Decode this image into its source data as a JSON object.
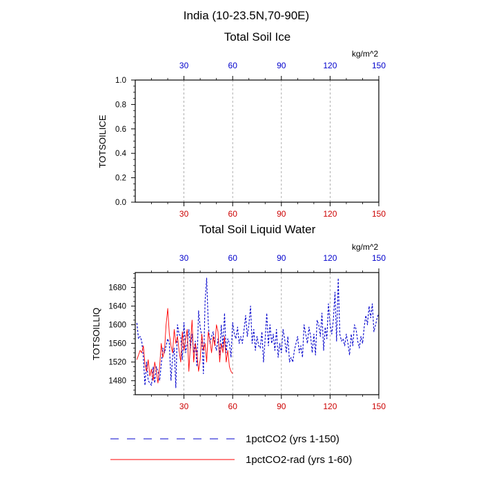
{
  "figure": {
    "title": "India (10-23.5N,70-90E)",
    "top_axis_color": "#0000cc",
    "bottom_axis_color": "#cc0000",
    "legend": [
      {
        "label": "1pctCO2 (yrs 1-150)",
        "color": "#0000cc",
        "style": "dashed"
      },
      {
        "label": "1pctCO2-rad (yrs 1-60)",
        "color": "#ff0000",
        "style": "solid"
      }
    ]
  },
  "chart_data": [
    {
      "type": "line",
      "title": "Total Soil Ice",
      "ylabel": "TOTSOILICE",
      "units": "kg/m^2",
      "xlim": [
        0,
        150
      ],
      "ylim": [
        0,
        1
      ],
      "x_ticks": [
        "30",
        "60",
        "90",
        "120",
        "150"
      ],
      "x_tick_values": [
        30,
        60,
        90,
        120,
        150
      ],
      "y_ticks": [
        "0.0",
        "0.2",
        "0.4",
        "0.6",
        "0.8",
        "1.0"
      ],
      "y_tick_values": [
        0,
        0.2,
        0.4,
        0.6,
        0.8,
        1.0
      ],
      "grid": "vertical dashed",
      "series": []
    },
    {
      "type": "line",
      "title": "Total Soil Liquid Water",
      "ylabel": "TOTSOILLIQ",
      "units": "kg/m^2",
      "xlim": [
        0,
        150
      ],
      "ylim": [
        1450,
        1712
      ],
      "x_ticks": [
        "30",
        "60",
        "90",
        "120",
        "150"
      ],
      "x_tick_values": [
        30,
        60,
        90,
        120,
        150
      ],
      "y_ticks": [
        "1480",
        "1520",
        "1560",
        "1600",
        "1640",
        "1680"
      ],
      "y_tick_values": [
        1480,
        1520,
        1560,
        1600,
        1640,
        1680
      ],
      "grid": "vertical dashed",
      "series": [
        {
          "name": "1pctCO2 (yrs 1-150)",
          "color": "#0000cc",
          "style": "dashed",
          "x": [
            1,
            2,
            3,
            4,
            5,
            6,
            7,
            8,
            9,
            10,
            11,
            12,
            13,
            14,
            15,
            16,
            17,
            18,
            19,
            20,
            21,
            22,
            23,
            24,
            25,
            26,
            27,
            28,
            29,
            30,
            31,
            32,
            33,
            34,
            35,
            36,
            37,
            38,
            39,
            40,
            41,
            42,
            43,
            44,
            45,
            46,
            47,
            48,
            49,
            50,
            51,
            52,
            53,
            54,
            55,
            56,
            57,
            58,
            59,
            60,
            61,
            62,
            63,
            64,
            65,
            66,
            67,
            68,
            69,
            70,
            71,
            72,
            73,
            74,
            75,
            76,
            77,
            78,
            79,
            80,
            81,
            82,
            83,
            84,
            85,
            86,
            87,
            88,
            89,
            90,
            91,
            92,
            93,
            94,
            95,
            96,
            97,
            98,
            99,
            100,
            101,
            102,
            103,
            104,
            105,
            106,
            107,
            108,
            109,
            110,
            111,
            112,
            113,
            114,
            115,
            116,
            117,
            118,
            119,
            120,
            121,
            122,
            123,
            124,
            125,
            126,
            127,
            128,
            129,
            130,
            131,
            132,
            133,
            134,
            135,
            136,
            137,
            138,
            139,
            140,
            141,
            142,
            143,
            144,
            145,
            146,
            147,
            148,
            149,
            150
          ],
          "values": [
            1604,
            1570,
            1575,
            1565,
            1530,
            1470,
            1520,
            1480,
            1475,
            1470,
            1510,
            1475,
            1510,
            1500,
            1480,
            1515,
            1550,
            1540,
            1555,
            1570,
            1560,
            1480,
            1530,
            1550,
            1465,
            1600,
            1580,
            1575,
            1525,
            1605,
            1540,
            1560,
            1590,
            1550,
            1580,
            1540,
            1565,
            1510,
            1630,
            1595,
            1575,
            1495,
            1650,
            1700,
            1600,
            1560,
            1575,
            1585,
            1560,
            1545,
            1570,
            1535,
            1600,
            1550,
            1625,
            1540,
            1570,
            1560,
            1530,
            1605,
            1580,
            1570,
            1595,
            1560,
            1575,
            1560,
            1590,
            1620,
            1575,
            1600,
            1640,
            1560,
            1590,
            1545,
            1575,
            1555,
            1550,
            1585,
            1520,
            1570,
            1625,
            1555,
            1600,
            1560,
            1580,
            1545,
            1590,
            1530,
            1560,
            1540,
            1590,
            1570,
            1540,
            1575,
            1520,
            1530,
            1520,
            1545,
            1560,
            1575,
            1540,
            1555,
            1530,
            1600,
            1580,
            1560,
            1595,
            1575,
            1540,
            1580,
            1535,
            1610,
            1600,
            1575,
            1625,
            1545,
            1595,
            1570,
            1645,
            1600,
            1580,
            1610,
            1670,
            1565,
            1700,
            1580,
            1565,
            1570,
            1555,
            1580,
            1560,
            1535,
            1580,
            1555,
            1600,
            1590,
            1565,
            1550,
            1575,
            1560,
            1595,
            1620,
            1600,
            1640,
            1615,
            1645,
            1585,
            1600,
            1615,
            1625
          ]
        },
        {
          "name": "1pctCO2-rad (yrs 1-60)",
          "color": "#ff0000",
          "style": "solid",
          "x": [
            1,
            2,
            3,
            4,
            5,
            6,
            7,
            8,
            9,
            10,
            11,
            12,
            13,
            14,
            15,
            16,
            17,
            18,
            19,
            20,
            21,
            22,
            23,
            24,
            25,
            26,
            27,
            28,
            29,
            30,
            31,
            32,
            33,
            34,
            35,
            36,
            37,
            38,
            39,
            40,
            41,
            42,
            43,
            44,
            45,
            46,
            47,
            48,
            49,
            50,
            51,
            52,
            53,
            54,
            55,
            56,
            57,
            58,
            59,
            60
          ],
          "values": [
            1525,
            1535,
            1545,
            1540,
            1555,
            1515,
            1500,
            1525,
            1490,
            1505,
            1480,
            1520,
            1500,
            1475,
            1510,
            1560,
            1530,
            1545,
            1600,
            1635,
            1580,
            1555,
            1540,
            1590,
            1560,
            1575,
            1545,
            1520,
            1585,
            1545,
            1570,
            1590,
            1500,
            1560,
            1610,
            1520,
            1560,
            1540,
            1500,
            1525,
            1580,
            1545,
            1560,
            1520,
            1585,
            1565,
            1540,
            1575,
            1555,
            1600,
            1585,
            1520,
            1560,
            1540,
            1575,
            1520,
            1545,
            1510,
            1500,
            1495
          ]
        }
      ]
    }
  ]
}
